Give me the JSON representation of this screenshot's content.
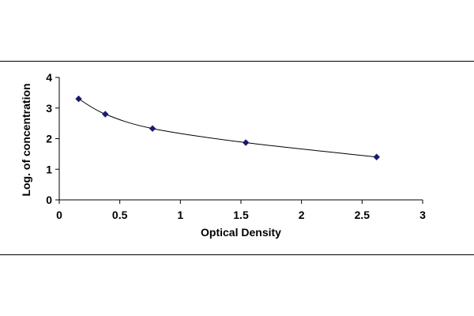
{
  "chart_data": {
    "type": "scatter",
    "title": "",
    "xlabel": "Optical Density",
    "ylabel": "Log. of concentration",
    "xlim": [
      0,
      3
    ],
    "ylim": [
      0,
      4
    ],
    "xticks": [
      "0",
      "0.5",
      "1",
      "1.5",
      "2",
      "2.5",
      "3"
    ],
    "yticks": [
      "0",
      "1",
      "2",
      "3",
      "4"
    ],
    "grid": false,
    "legend": "none",
    "trendline": "smooth curve through points",
    "colors": {
      "marker": "#1a1a6e",
      "line": "#000000"
    },
    "series": [
      {
        "x": [
          0.16,
          0.38,
          0.77,
          1.54,
          2.62
        ],
        "y": [
          3.3,
          2.8,
          2.33,
          1.87,
          1.4
        ]
      }
    ]
  }
}
